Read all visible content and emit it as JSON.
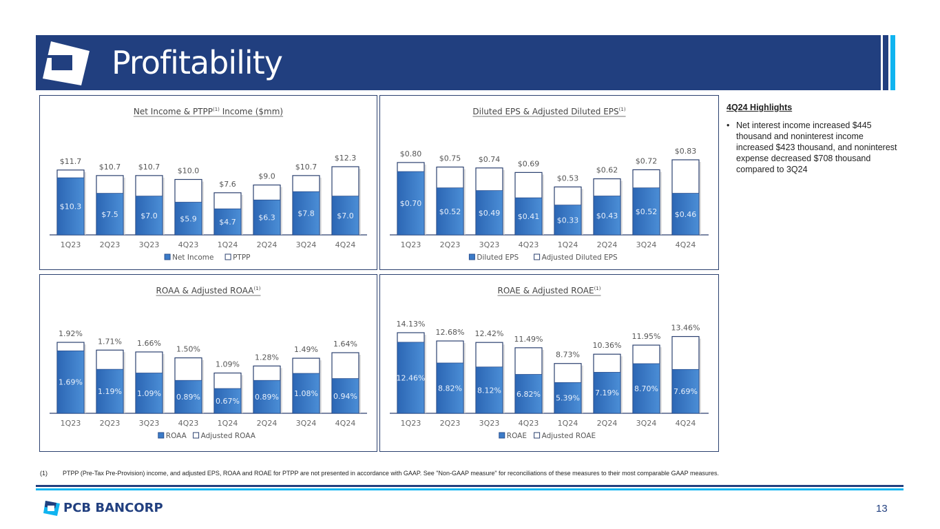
{
  "header": {
    "title": "Profitability"
  },
  "highlights": {
    "heading": "4Q24 Highlights",
    "bullets": [
      "Net interest income increased $445 thousand and noninterest income increased $423 thousand, and noninterest expense decreased $708 thousand compared to 3Q24"
    ]
  },
  "footnote": {
    "marker": "(1)",
    "text": "PTPP (Pre-Tax Pre-Provision) income, and adjusted EPS, ROAA and ROAE for PTPP are not presented in accordance with GAAP. See \"Non-GAAP measure\" for reconciliations of these measures to their most comparable GAAP measures."
  },
  "footer": {
    "brand": "PCB BANCORP",
    "page_number": "13"
  },
  "colors": {
    "navy": "#213f7f",
    "cyan": "#10b4f0",
    "bar": "#3b7bc8"
  },
  "chart_data": [
    {
      "type": "bar",
      "title": "Net Income & PTPP",
      "title_sup": "(1)",
      "title_suffix": " Income ($mm)",
      "categories": [
        "1Q23",
        "2Q23",
        "3Q23",
        "4Q23",
        "1Q24",
        "2Q24",
        "3Q24",
        "4Q24"
      ],
      "series": [
        {
          "name": "Net Income",
          "values": [
            10.3,
            7.5,
            7.0,
            5.9,
            4.7,
            6.3,
            7.8,
            7.0
          ],
          "labels": [
            "$10.3",
            "$7.5",
            "$7.0",
            "$5.9",
            "$4.7",
            "$6.3",
            "$7.8",
            "$7.0"
          ]
        },
        {
          "name": "PTPP",
          "values": [
            11.7,
            10.7,
            10.7,
            10.0,
            7.6,
            9.0,
            10.7,
            12.3
          ],
          "labels": [
            "$11.7",
            "$10.7",
            "$10.7",
            "$10.0",
            "$7.6",
            "$9.0",
            "$10.7",
            "$12.3"
          ]
        }
      ],
      "legend": "bottom"
    },
    {
      "type": "bar",
      "title": "Diluted EPS & Adjusted Diluted EPS",
      "title_sup": "(1)",
      "title_suffix": "",
      "categories": [
        "1Q23",
        "2Q23",
        "3Q23",
        "4Q23",
        "1Q24",
        "2Q24",
        "3Q24",
        "4Q24"
      ],
      "series": [
        {
          "name": "Diluted EPS",
          "values": [
            0.7,
            0.52,
            0.49,
            0.41,
            0.33,
            0.43,
            0.52,
            0.46
          ],
          "labels": [
            "$0.70",
            "$0.52",
            "$0.49",
            "$0.41",
            "$0.33",
            "$0.43",
            "$0.52",
            "$0.46"
          ]
        },
        {
          "name": "Adjusted Diluted EPS",
          "values": [
            0.8,
            0.75,
            0.74,
            0.69,
            0.53,
            0.62,
            0.72,
            0.83
          ],
          "labels": [
            "$0.80",
            "$0.75",
            "$0.74",
            "$0.69",
            "$0.53",
            "$0.62",
            "$0.72",
            "$0.83"
          ]
        }
      ],
      "legend": "bottom"
    },
    {
      "type": "bar",
      "title": "ROAA & Adjusted ROAA",
      "title_sup": "(1)",
      "title_suffix": "",
      "categories": [
        "1Q23",
        "2Q23",
        "3Q23",
        "4Q23",
        "1Q24",
        "2Q24",
        "3Q24",
        "4Q24"
      ],
      "series": [
        {
          "name": "ROAA",
          "values": [
            1.69,
            1.19,
            1.09,
            0.89,
            0.67,
            0.89,
            1.08,
            0.94
          ],
          "labels": [
            "1.69%",
            "1.19%",
            "1.09%",
            "0.89%",
            "0.67%",
            "0.89%",
            "1.08%",
            "0.94%"
          ]
        },
        {
          "name": "Adjusted ROAA",
          "values": [
            1.92,
            1.71,
            1.66,
            1.5,
            1.09,
            1.28,
            1.49,
            1.64
          ],
          "labels": [
            "1.92%",
            "1.71%",
            "1.66%",
            "1.50%",
            "1.09%",
            "1.28%",
            "1.49%",
            "1.64%"
          ]
        }
      ],
      "legend": "bottom"
    },
    {
      "type": "bar",
      "title": "ROAE & Adjusted ROAE",
      "title_sup": "(1)",
      "title_suffix": "",
      "categories": [
        "1Q23",
        "2Q23",
        "3Q23",
        "4Q23",
        "1Q24",
        "2Q24",
        "3Q24",
        "4Q24"
      ],
      "series": [
        {
          "name": "ROAE",
          "values": [
            12.46,
            8.82,
            8.12,
            6.82,
            5.39,
            7.19,
            8.7,
            7.69
          ],
          "labels": [
            "12.46%",
            "8.82%",
            "8.12%",
            "6.82%",
            "5.39%",
            "7.19%",
            "8.70%",
            "7.69%"
          ]
        },
        {
          "name": "Adjusted ROAE",
          "values": [
            14.13,
            12.68,
            12.42,
            11.49,
            8.73,
            10.36,
            11.95,
            13.46
          ],
          "labels": [
            "14.13%",
            "12.68%",
            "12.42%",
            "11.49%",
            "8.73%",
            "10.36%",
            "11.95%",
            "13.46%"
          ]
        }
      ],
      "legend": "bottom"
    }
  ]
}
